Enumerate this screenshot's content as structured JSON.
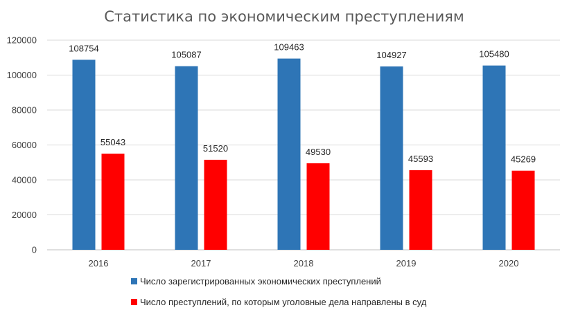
{
  "chart_data": {
    "type": "bar",
    "title": "Статистика по экономическим преступлениям",
    "categories": [
      "2016",
      "2017",
      "2018",
      "2019",
      "2020"
    ],
    "series": [
      {
        "name": "Число зарегистрированных экономических преступлений",
        "color": "#2e75b6",
        "values": [
          108754,
          105087,
          109463,
          104927,
          105480
        ]
      },
      {
        "name": "Число преступлений, по которым уголовные дела направлены в суд",
        "color": "#ff0000",
        "values": [
          55043,
          51520,
          49530,
          45593,
          45269
        ]
      }
    ],
    "y_ticks": [
      "0",
      "20000",
      "40000",
      "60000",
      "80000",
      "100000",
      "120000"
    ],
    "ylim": [
      0,
      120000
    ],
    "grid": true,
    "legend_position": "bottom"
  }
}
